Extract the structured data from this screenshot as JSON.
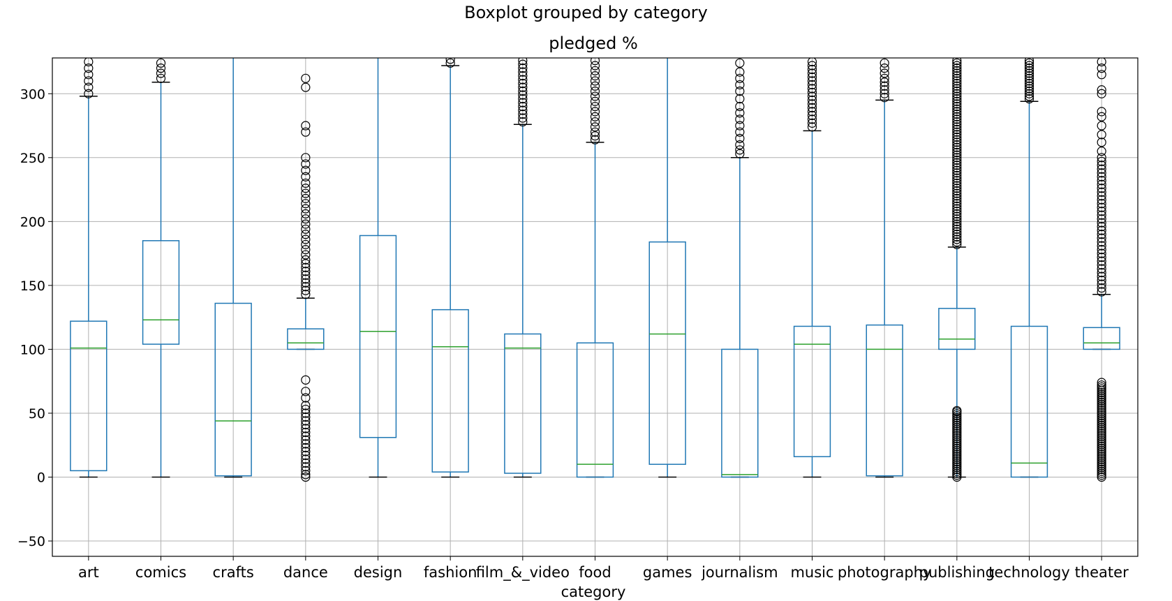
{
  "chart_data": {
    "type": "boxplot",
    "suptitle": "Boxplot grouped by category",
    "title": "pledged %",
    "xlabel": "category",
    "ylabel": "",
    "ylim": [
      -62,
      328
    ],
    "yticks": [
      -50,
      0,
      50,
      100,
      150,
      200,
      250,
      300
    ],
    "grid": true,
    "categories": [
      "art",
      "comics",
      "crafts",
      "dance",
      "design",
      "fashion",
      "film_&_video",
      "food",
      "games",
      "journalism",
      "music",
      "photography",
      "publishing",
      "technology",
      "theater"
    ],
    "boxes": [
      {
        "name": "art",
        "whislo": 0,
        "q1": 5,
        "med": 101,
        "q3": 122,
        "whishi": 298,
        "fliers_low": [],
        "fliers_high": [
          300,
          305,
          310,
          315,
          320,
          325
        ]
      },
      {
        "name": "comics",
        "whislo": 0,
        "q1": 104,
        "med": 123,
        "q3": 185,
        "whishi": 309,
        "fliers_low": [],
        "fliers_high": [
          312,
          316,
          320,
          324
        ]
      },
      {
        "name": "crafts",
        "whislo": 0,
        "q1": 1,
        "med": 44,
        "q3": 136,
        "whishi": 330,
        "fliers_low": [],
        "fliers_high": []
      },
      {
        "name": "dance",
        "whislo": 100,
        "q1": 100,
        "med": 105,
        "q3": 116,
        "whishi": 140,
        "fliers_low": [
          0,
          2,
          5,
          8,
          11,
          14,
          17,
          20,
          23,
          26,
          29,
          32,
          35,
          38,
          41,
          44,
          47,
          50,
          53,
          56,
          62,
          67,
          76
        ],
        "fliers_high": [
          143,
          146,
          149,
          152,
          155,
          158,
          161,
          164,
          167,
          170,
          174,
          178,
          182,
          186,
          190,
          194,
          198,
          202,
          206,
          210,
          214,
          218,
          222,
          226,
          230,
          235,
          240,
          245,
          250,
          270,
          275,
          305,
          312
        ]
      },
      {
        "name": "design",
        "whislo": 0,
        "q1": 31,
        "med": 114,
        "q3": 189,
        "whishi": 330,
        "fliers_low": [],
        "fliers_high": []
      },
      {
        "name": "fashion",
        "whislo": 0,
        "q1": 4,
        "med": 102,
        "q3": 131,
        "whishi": 322,
        "fliers_low": [],
        "fliers_high": [
          324,
          327
        ]
      },
      {
        "name": "film_&_video",
        "whislo": 0,
        "q1": 3,
        "med": 101,
        "q3": 112,
        "whishi": 276,
        "fliers_low": [],
        "fliers_high": [
          278,
          281,
          284,
          287,
          290,
          293,
          296,
          299,
          302,
          305,
          308,
          311,
          314,
          317,
          320,
          323,
          326
        ]
      },
      {
        "name": "food",
        "whislo": 0,
        "q1": 0,
        "med": 10,
        "q3": 105,
        "whishi": 262,
        "fliers_low": [],
        "fliers_high": [
          264,
          267,
          270,
          274,
          278,
          282,
          286,
          290,
          294,
          298,
          302,
          306,
          310,
          314,
          318,
          322,
          326
        ]
      },
      {
        "name": "games",
        "whislo": 0,
        "q1": 10,
        "med": 112,
        "q3": 184,
        "whishi": 330,
        "fliers_low": [],
        "fliers_high": []
      },
      {
        "name": "journalism",
        "whislo": 0,
        "q1": 0,
        "med": 2,
        "q3": 100,
        "whishi": 250,
        "fliers_low": [],
        "fliers_high": [
          253,
          256,
          260,
          265,
          270,
          275,
          280,
          285,
          290,
          296,
          302,
          307,
          312,
          317,
          324
        ]
      },
      {
        "name": "music",
        "whislo": 0,
        "q1": 16,
        "med": 104,
        "q3": 118,
        "whishi": 271,
        "fliers_low": [],
        "fliers_high": [
          274,
          277,
          280,
          283,
          286,
          289,
          292,
          295,
          298,
          301,
          304,
          307,
          310,
          313,
          316,
          319,
          322,
          325
        ]
      },
      {
        "name": "photography",
        "whislo": 0,
        "q1": 1,
        "med": 100,
        "q3": 119,
        "whishi": 295,
        "fliers_low": [],
        "fliers_high": [
          297,
          300,
          303,
          306,
          309,
          312,
          316,
          320,
          324
        ]
      },
      {
        "name": "publishing",
        "whislo": 0,
        "q1": 100,
        "med": 108,
        "q3": 132,
        "whishi": 180,
        "fliers_low": [
          0,
          1.5,
          3,
          4.5,
          6,
          7.5,
          9,
          10.5,
          12,
          13.5,
          15,
          16.5,
          18,
          19.5,
          21,
          22.5,
          24,
          25.5,
          27,
          28.5,
          30,
          31.5,
          33,
          34.5,
          36,
          37.5,
          39,
          40.5,
          42,
          43.5,
          45,
          46.5,
          48,
          49.5,
          51,
          52
        ],
        "fliers_high": [
          182,
          184,
          186,
          188,
          190,
          192,
          194,
          196,
          198,
          200,
          202,
          204,
          206,
          208,
          210,
          212,
          214,
          216,
          218,
          220,
          222,
          224,
          226,
          228,
          230,
          232,
          234,
          236,
          238,
          240,
          242,
          244,
          246,
          248,
          250,
          252,
          254,
          256,
          258,
          260,
          262,
          264,
          266,
          268,
          270,
          272,
          274,
          276,
          278,
          280,
          282,
          284,
          286,
          288,
          290,
          292,
          294,
          296,
          298,
          300,
          302,
          304,
          306,
          308,
          310,
          312,
          314,
          316,
          318,
          320,
          322,
          324,
          326
        ]
      },
      {
        "name": "technology",
        "whislo": 0,
        "q1": 0,
        "med": 11,
        "q3": 118,
        "whishi": 294,
        "fliers_low": [],
        "fliers_high": [
          296,
          298,
          300,
          302,
          304,
          306,
          308,
          310,
          312,
          314,
          316,
          318,
          320,
          322,
          324,
          326
        ]
      },
      {
        "name": "theater",
        "whislo": 100,
        "q1": 100,
        "med": 105,
        "q3": 117,
        "whishi": 143,
        "fliers_low": [
          0,
          1.5,
          3,
          4.5,
          6,
          7.5,
          9,
          10.5,
          12,
          13.5,
          15,
          16.5,
          18,
          19.5,
          21,
          22.5,
          24,
          25.5,
          27,
          28.5,
          30,
          31.5,
          33,
          34.5,
          36,
          37.5,
          39,
          40.5,
          42,
          43.5,
          45,
          46.5,
          48,
          49.5,
          51,
          52.5,
          54,
          55.5,
          57,
          58.5,
          60,
          61.5,
          63,
          64.5,
          66,
          67.5,
          69,
          70.5,
          72,
          74
        ],
        "fliers_high": [
          145,
          148,
          151,
          154,
          157,
          160,
          163,
          166,
          169,
          172,
          175,
          178,
          181,
          184,
          187,
          190,
          193,
          196,
          199,
          202,
          205,
          208,
          211,
          214,
          217,
          220,
          223,
          226,
          229,
          232,
          235,
          238,
          241,
          244,
          247,
          250,
          255,
          262,
          268,
          275,
          282,
          286,
          300,
          303,
          315,
          320,
          325
        ]
      }
    ],
    "colors": {
      "box": "#1f77b4",
      "median": "#2ca02c",
      "grid": "#b0b0b0",
      "flier": "#000000"
    }
  }
}
